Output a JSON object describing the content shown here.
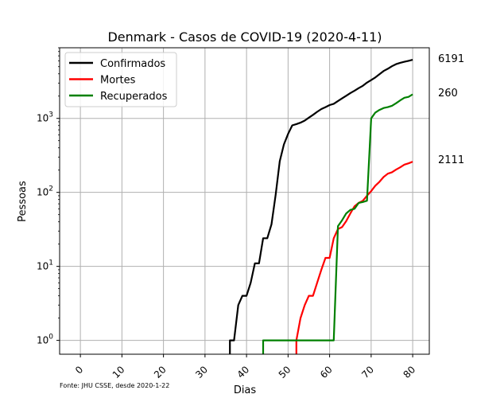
{
  "chart_data": {
    "type": "line",
    "title": "Denmark - Casos de COVID-19 (2020-4-11)",
    "xlabel": "Dias",
    "ylabel": "Pessoas",
    "yscale": "log",
    "xlim": [
      -5,
      84
    ],
    "ylim": [
      0.65,
      9000
    ],
    "x_ticks": [
      0,
      10,
      20,
      30,
      40,
      50,
      60,
      70,
      80
    ],
    "x_tick_labels": [
      "0",
      "10",
      "20",
      "30",
      "40",
      "50",
      "60",
      "70",
      "80"
    ],
    "y_ticks": [
      1,
      10,
      100,
      1000
    ],
    "y_tick_labels": [
      {
        "base": "10",
        "exp": "0"
      },
      {
        "base": "10",
        "exp": "1"
      },
      {
        "base": "10",
        "exp": "2"
      },
      {
        "base": "10",
        "exp": "3"
      }
    ],
    "grid": true,
    "legend_position": "top-left",
    "series": [
      {
        "name": "Confirmados",
        "color": "#000000",
        "end_label": "6191",
        "x": [
          36,
          37,
          38,
          39,
          40,
          41,
          42,
          43,
          44,
          45,
          46,
          47,
          48,
          49,
          50,
          51,
          52,
          53,
          54,
          55,
          56,
          57,
          58,
          59,
          60,
          61,
          62,
          63,
          64,
          65,
          66,
          67,
          68,
          69,
          70,
          71,
          72,
          73,
          74,
          75,
          76,
          77,
          78,
          79,
          80
        ],
        "y": [
          1,
          1,
          3,
          4,
          4,
          6,
          11,
          11,
          24,
          24,
          37,
          92,
          264,
          444,
          617,
          804,
          836,
          875,
          933,
          1024,
          1115,
          1225,
          1337,
          1420,
          1514,
          1572,
          1718,
          1862,
          2023,
          2200,
          2366,
          2564,
          2755,
          3039,
          3290,
          3573,
          3946,
          4369,
          4681,
          5071,
          5402,
          5635,
          5819,
          5996,
          6191
        ]
      },
      {
        "name": "Mortes",
        "color": "#ff0000",
        "end_label": "260",
        "x": [
          52,
          53,
          54,
          55,
          56,
          57,
          58,
          59,
          60,
          61,
          62,
          63,
          64,
          65,
          66,
          67,
          68,
          69,
          70,
          71,
          72,
          73,
          74,
          75,
          76,
          77,
          78,
          79,
          80
        ],
        "y": [
          1,
          2,
          3,
          4,
          4,
          6,
          9,
          13,
          13,
          24,
          32,
          34,
          41,
          52,
          65,
          72,
          77,
          90,
          104,
          123,
          139,
          161,
          179,
          187,
          203,
          218,
          237,
          247,
          260
        ]
      },
      {
        "name": "Recuperados",
        "color": "#008000",
        "end_label": "2111",
        "x": [
          44,
          45,
          46,
          47,
          48,
          49,
          50,
          51,
          52,
          53,
          54,
          55,
          56,
          57,
          58,
          59,
          60,
          61,
          62,
          63,
          64,
          65,
          66,
          67,
          68,
          69,
          70,
          71,
          72,
          73,
          74,
          75,
          76,
          77,
          78,
          79,
          80
        ],
        "y": [
          1,
          1,
          1,
          1,
          1,
          1,
          1,
          1,
          1,
          1,
          1,
          1,
          1,
          1,
          1,
          1,
          1,
          1,
          35,
          42,
          52,
          58,
          60,
          72,
          74,
          77,
          1000,
          1200,
          1300,
          1380,
          1420,
          1480,
          1600,
          1750,
          1900,
          1950,
          2111
        ]
      }
    ],
    "source_note": "Fonte: JHU CSSE, desde 2020-1-22"
  }
}
